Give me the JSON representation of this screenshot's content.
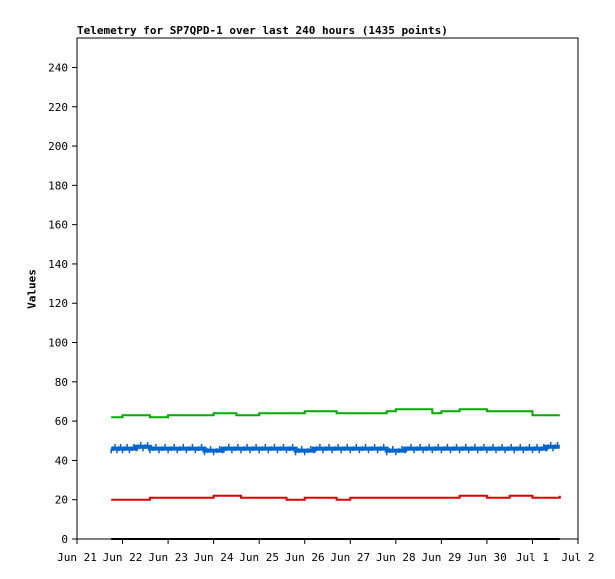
{
  "chart_data": {
    "type": "line",
    "title": "Telemetry for SP7QPD-1 over last 240 hours (1435 points)",
    "xlabel": "",
    "ylabel": "Values",
    "ylim": [
      0,
      255
    ],
    "xlim": [
      "Jun 21 00:00",
      "Jul 2 00:00"
    ],
    "y_ticks": [
      0,
      20,
      40,
      60,
      80,
      100,
      120,
      140,
      160,
      180,
      200,
      220,
      240
    ],
    "x_ticks": [
      "Jun 21",
      "Jun 22",
      "Jun 23",
      "Jun 24",
      "Jun 25",
      "Jun 26",
      "Jun 27",
      "Jun 28",
      "Jun 29",
      "Jun 30",
      "Jul 1",
      "Jul 2"
    ],
    "x_tick_days": [
      0,
      1,
      2,
      3,
      4,
      5,
      6,
      7,
      8,
      9,
      10,
      11
    ],
    "grid": false,
    "legend": "none",
    "series": [
      {
        "color": "#00aa00",
        "x_days": [
          0.75,
          1.0,
          1.6,
          2.0,
          2.7,
          3.0,
          3.5,
          4.0,
          4.6,
          5.0,
          5.7,
          6.0,
          6.8,
          7.0,
          7.8,
          8.0,
          8.4,
          9.0,
          9.5,
          10.0,
          10.6
        ],
        "values": [
          62,
          63,
          62,
          63,
          63,
          64,
          63,
          64,
          64,
          65,
          64,
          64,
          65,
          66,
          64,
          65,
          66,
          65,
          65,
          63,
          63
        ]
      },
      {
        "color": "#0066cc",
        "x_days": [
          0.75,
          1.0,
          1.3,
          1.6,
          2.0,
          2.4,
          2.8,
          3.2,
          3.6,
          4.0,
          4.4,
          4.8,
          5.2,
          5.6,
          6.0,
          6.4,
          6.8,
          7.2,
          7.6,
          8.0,
          8.4,
          8.8,
          9.2,
          9.6,
          10.0,
          10.3,
          10.6
        ],
        "values": [
          46,
          46,
          47,
          46,
          46,
          46,
          45,
          46,
          46,
          46,
          46,
          45,
          46,
          46,
          46,
          46,
          45,
          46,
          46,
          46,
          46,
          46,
          46,
          46,
          46,
          47,
          47
        ]
      },
      {
        "color": "#dd0000",
        "x_days": [
          0.75,
          1.0,
          1.6,
          2.0,
          2.7,
          3.0,
          3.6,
          4.0,
          4.6,
          5.0,
          5.7,
          6.0,
          6.8,
          7.0,
          7.8,
          8.0,
          8.4,
          9.0,
          9.5,
          10.0,
          10.6
        ],
        "values": [
          20,
          20,
          21,
          21,
          21,
          22,
          21,
          21,
          20,
          21,
          20,
          21,
          21,
          21,
          21,
          21,
          22,
          21,
          22,
          21,
          22
        ]
      },
      {
        "color": "#000000",
        "x_days": [
          0.75,
          10.6
        ],
        "values": [
          0,
          0
        ]
      }
    ]
  }
}
